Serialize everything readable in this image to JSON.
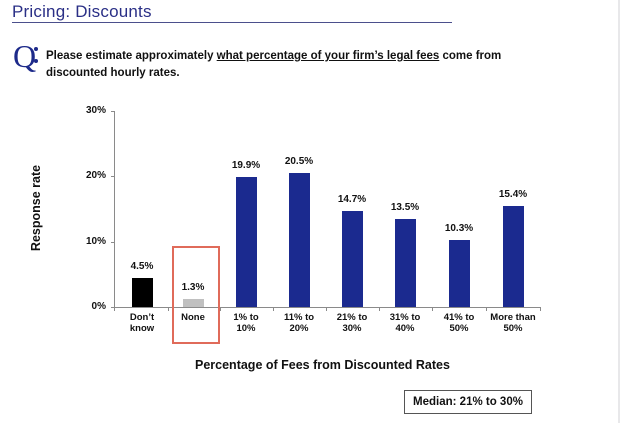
{
  "page": {
    "title": "Pricing: Discounts",
    "question_mark": "Q",
    "question_pre": "Please estimate approximately ",
    "question_underlined": "what percentage of your firm’s legal fees",
    "question_post": " come from discounted hourly rates.",
    "median_box": "Median: 21% to 30%",
    "highlight_category": "None"
  },
  "colors": {
    "title": "#2a2f86",
    "primary_bar": "#1b2a8f",
    "dont_know_bar": "#000000",
    "none_bar": "#c0c0c0",
    "highlight_box": "#e06b5a"
  },
  "chart_data": {
    "type": "bar",
    "title": "",
    "xlabel": "Percentage of Fees from Discounted Rates",
    "ylabel": "Response rate",
    "ylim": [
      0,
      30
    ],
    "yticks": [
      "0%",
      "10%",
      "20%",
      "30%"
    ],
    "grid": false,
    "categories": [
      "Don't know",
      "None",
      "1% to 10%",
      "11% to 20%",
      "21% to 30%",
      "31% to 40%",
      "41% to 50%",
      "More than 50%"
    ],
    "category_lines": [
      [
        "Don’t",
        "know"
      ],
      [
        "None",
        ""
      ],
      [
        "1% to",
        "10%"
      ],
      [
        "11% to",
        "20%"
      ],
      [
        "21% to",
        "30%"
      ],
      [
        "31% to",
        "40%"
      ],
      [
        "41% to",
        "50%"
      ],
      [
        "More than",
        "50%"
      ]
    ],
    "values": [
      4.5,
      1.3,
      19.9,
      20.5,
      14.7,
      13.5,
      10.3,
      15.4
    ],
    "value_labels": [
      "4.5%",
      "1.3%",
      "19.9%",
      "20.5%",
      "14.7%",
      "13.5%",
      "10.3%",
      "15.4%"
    ],
    "annotations": [
      "Median: 21% to 30%",
      "Highlight box around 'None'"
    ]
  }
}
